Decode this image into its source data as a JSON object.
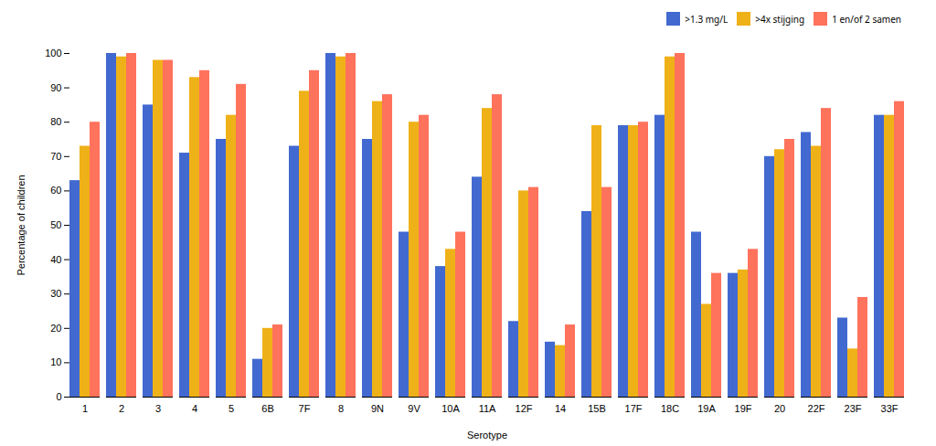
{
  "chart_data": {
    "type": "bar",
    "categories": [
      "1",
      "2",
      "3",
      "4",
      "5",
      "6B",
      "7F",
      "8",
      "9N",
      "9V",
      "10A",
      "11A",
      "12F",
      "14",
      "15B",
      "17F",
      "18C",
      "19A",
      "19F",
      "20",
      "22F",
      "23F",
      "33F"
    ],
    "series": [
      {
        "name": ">1.3 mg/L",
        "values": [
          63,
          100,
          85,
          71,
          75,
          11,
          73,
          100,
          75,
          48,
          38,
          64,
          22,
          16,
          54,
          79,
          82,
          48,
          36,
          70,
          77,
          23,
          82
        ]
      },
      {
        "name": ">4x stijging",
        "values": [
          73,
          99,
          98,
          93,
          82,
          20,
          89,
          99,
          86,
          80,
          43,
          84,
          60,
          15,
          79,
          79,
          99,
          27,
          37,
          72,
          73,
          14,
          82
        ]
      },
      {
        "name": "1 en/of 2 samen",
        "values": [
          80,
          100,
          98,
          95,
          91,
          21,
          95,
          100,
          88,
          82,
          48,
          88,
          61,
          21,
          61,
          80,
          100,
          36,
          43,
          75,
          84,
          29,
          86
        ]
      }
    ],
    "xlabel": "Serotype",
    "ylabel": "Percentage of children",
    "ylim": [
      0,
      100
    ],
    "yticks": [
      0,
      10,
      20,
      30,
      40,
      50,
      60,
      70,
      80,
      90,
      100
    ],
    "grid": false,
    "legend": "upper right"
  }
}
